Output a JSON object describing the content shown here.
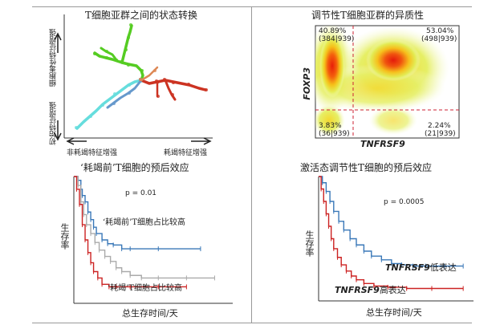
{
  "panel_a": {
    "title": "T细胞亚群之间的状态转换",
    "y_upper_label": "细胞毒性特征增强",
    "y_lower_label": "初始特征增强",
    "x_left_label": "非耗竭特征增强",
    "x_right_label": "耗竭特征增强",
    "colors": {
      "green": "#55cc22",
      "blue": "#6699cc",
      "red": "#cc3322",
      "cyan": "#66dddd",
      "orange": "#dd8855"
    }
  },
  "panel_b": {
    "title": "调节性T细胞亚群的异质性",
    "y_axis_label": "FOXP3",
    "x_axis_label": "TNFRSF9",
    "quadrants": {
      "top_left_pct": "40.89%",
      "top_left_count": "(384|939)",
      "top_right_pct": "53.04%",
      "top_right_count": "(498|939)",
      "bottom_left_pct": "3.83%",
      "bottom_left_count": "(36|939)",
      "bottom_right_pct": "2.24%",
      "bottom_right_count": "(21|939)"
    }
  },
  "panel_c": {
    "title": "‘耗竭前’T细胞的预后效应",
    "p_value": "p = 0.01",
    "y_label": "生存率",
    "x_label": "总生存时间/天",
    "high_label": "‘耗竭前’T细胞占比较高",
    "exhausted_label": "‘耗竭’T细胞占比较高",
    "colors": {
      "blue": "#3a78b8",
      "gray": "#aaaaaa",
      "red": "#cc2222"
    },
    "chart_data": {
      "type": "line",
      "series": [
        {
          "x": [
            0,
            3,
            5,
            6,
            8,
            10,
            12,
            14,
            16,
            20,
            24,
            28,
            34,
            40,
            60,
            90
          ],
          "y": [
            1.0,
            0.97,
            0.9,
            0.85,
            0.8,
            0.72,
            0.66,
            0.6,
            0.55,
            0.5,
            0.47,
            0.46,
            0.43,
            0.43,
            0.43,
            0.43
          ]
        },
        {
          "x": [
            0,
            3,
            5,
            7,
            9,
            12,
            15,
            18,
            22,
            26,
            30,
            34,
            40,
            48,
            60,
            80,
            100
          ],
          "y": [
            1.0,
            0.93,
            0.8,
            0.7,
            0.62,
            0.55,
            0.48,
            0.42,
            0.37,
            0.33,
            0.28,
            0.25,
            0.22,
            0.2,
            0.2,
            0.2,
            0.2
          ]
        },
        {
          "x": [
            0,
            2,
            4,
            6,
            8,
            10,
            12,
            14,
            17,
            20,
            25,
            30,
            40,
            60,
            80
          ],
          "y": [
            1.0,
            0.9,
            0.78,
            0.62,
            0.5,
            0.4,
            0.32,
            0.25,
            0.2,
            0.15,
            0.13,
            0.13,
            0.13,
            0.13,
            0.13
          ]
        }
      ],
      "xlim": [
        0,
        110
      ],
      "ylim": [
        0,
        1
      ]
    }
  },
  "panel_d": {
    "title": "激活态调节性T细胞的预后效应",
    "p_value": "p = 0.0005",
    "y_label": "生存率",
    "x_label": "总生存时间/天",
    "low_label_gene": "TNFRSF9",
    "low_label_suffix": "低表达",
    "high_label_gene": "TNFRSF9",
    "high_label_suffix": "高表达",
    "colors": {
      "blue": "#3a78b8",
      "red": "#cc2222"
    },
    "chart_data": {
      "type": "line",
      "series": [
        {
          "x": [
            0,
            3,
            6,
            9,
            12,
            16,
            20,
            25,
            30,
            36,
            42,
            50,
            58,
            66,
            75,
            85,
            100,
            115
          ],
          "y": [
            1.0,
            0.95,
            0.88,
            0.8,
            0.72,
            0.64,
            0.57,
            0.5,
            0.45,
            0.4,
            0.36,
            0.33,
            0.3,
            0.29,
            0.28,
            0.28,
            0.28,
            0.28
          ]
        },
        {
          "x": [
            0,
            2,
            4,
            6,
            8,
            10,
            12,
            15,
            18,
            22,
            26,
            30,
            36,
            44,
            55,
            70,
            90,
            115
          ],
          "y": [
            1.0,
            0.9,
            0.8,
            0.7,
            0.6,
            0.5,
            0.42,
            0.35,
            0.29,
            0.24,
            0.2,
            0.17,
            0.14,
            0.12,
            0.11,
            0.1,
            0.1,
            0.1
          ]
        }
      ],
      "xlim": [
        0,
        120
      ],
      "ylim": [
        0,
        1
      ]
    }
  }
}
